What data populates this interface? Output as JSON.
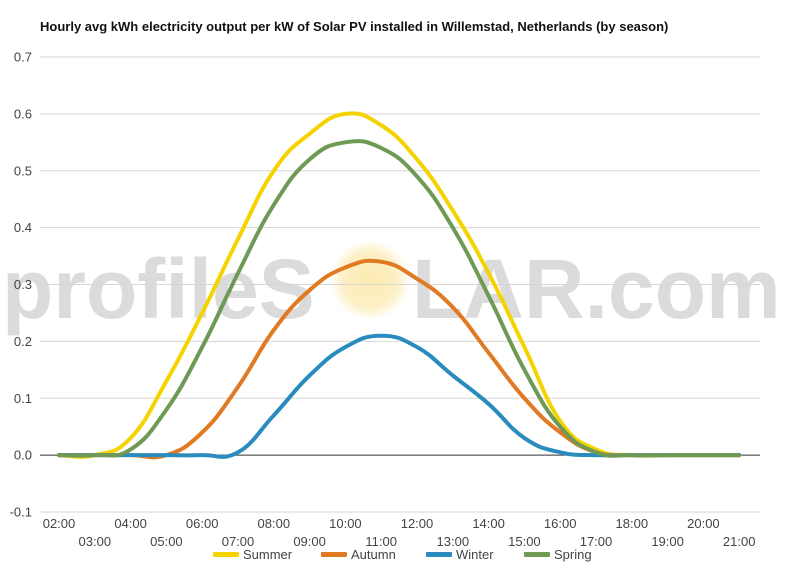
{
  "chart_data": {
    "type": "line",
    "title": "Hourly avg kWh electricity output per kW of Solar PV installed in Willemstad, Netherlands (by season)",
    "xlabel": "",
    "ylabel": "",
    "x": [
      "02:00",
      "03:00",
      "04:00",
      "05:00",
      "06:00",
      "07:00",
      "08:00",
      "09:00",
      "10:00",
      "11:00",
      "12:00",
      "13:00",
      "14:00",
      "15:00",
      "16:00",
      "17:00",
      "18:00",
      "19:00",
      "20:00",
      "21:00"
    ],
    "ylim": [
      -0.1,
      0.7
    ],
    "yticks": [
      "-0.1",
      "0.0",
      "0.1",
      "0.2",
      "0.3",
      "0.4",
      "0.5",
      "0.6",
      "0.7"
    ],
    "grid": true,
    "legend_position": "bottom",
    "series": [
      {
        "name": "Summer",
        "color": "#f5d300",
        "values": [
          0.0,
          0.0,
          0.03,
          0.13,
          0.25,
          0.38,
          0.5,
          0.565,
          0.6,
          0.58,
          0.52,
          0.43,
          0.32,
          0.19,
          0.06,
          0.01,
          0.0,
          0.0,
          0.0,
          0.0
        ]
      },
      {
        "name": "Autumn",
        "color": "#e07a23",
        "values": [
          0.0,
          0.0,
          0.0,
          0.0,
          0.04,
          0.12,
          0.22,
          0.29,
          0.33,
          0.34,
          0.31,
          0.26,
          0.18,
          0.1,
          0.04,
          0.005,
          0.0,
          0.0,
          0.0,
          0.0
        ]
      },
      {
        "name": "Winter",
        "color": "#2a8bbf",
        "values": [
          0.0,
          0.0,
          0.0,
          0.0,
          0.0,
          0.005,
          0.07,
          0.14,
          0.19,
          0.21,
          0.19,
          0.14,
          0.09,
          0.03,
          0.005,
          0.0,
          0.0,
          0.0,
          0.0,
          0.0
        ]
      },
      {
        "name": "Spring",
        "color": "#6e9a55",
        "values": [
          0.0,
          0.0,
          0.01,
          0.08,
          0.19,
          0.32,
          0.44,
          0.52,
          0.55,
          0.54,
          0.49,
          0.4,
          0.28,
          0.15,
          0.05,
          0.005,
          0.0,
          0.0,
          0.0,
          0.0
        ]
      }
    ]
  },
  "watermark": {
    "text_before": "profileS",
    "text_after": "LAR.com",
    "sun_color": "#fbe49a"
  }
}
